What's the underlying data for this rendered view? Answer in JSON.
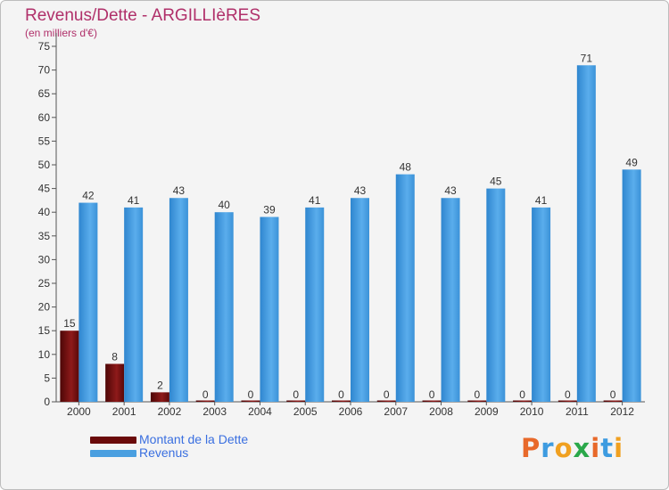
{
  "title": "Revenus/Dette - ARGILLIèRES",
  "subtitle": "(en milliers d'€)",
  "logo_text": "Proxiti",
  "colors": {
    "title": "#b0306a",
    "debt": "#7a0f0f",
    "revenue": "#4a9fe0",
    "legend_text": "#3a6fe0",
    "background": "#f4f4f4"
  },
  "chart_data": {
    "type": "bar",
    "title": "Revenus/Dette - ARGILLIèRES",
    "subtitle": "(en milliers d'€)",
    "categories": [
      "2000",
      "2001",
      "2002",
      "2003",
      "2004",
      "2005",
      "2006",
      "2007",
      "2008",
      "2009",
      "2010",
      "2011",
      "2012"
    ],
    "series": [
      {
        "name": "Montant de la Dette",
        "color": "#7a0f0f",
        "values": [
          15,
          8,
          2,
          0,
          0,
          0,
          0,
          0,
          0,
          0,
          0,
          0,
          0
        ]
      },
      {
        "name": "Revenus",
        "color": "#4a9fe0",
        "values": [
          42,
          41,
          43,
          40,
          39,
          41,
          43,
          48,
          43,
          45,
          41,
          71,
          49
        ]
      }
    ],
    "ylim": [
      0,
      75
    ],
    "yticks": [
      0,
      5,
      10,
      15,
      20,
      25,
      30,
      35,
      40,
      45,
      50,
      55,
      60,
      65,
      70,
      75
    ],
    "xlabel": "",
    "ylabel": "",
    "grid": false,
    "legend_position": "bottom-left"
  }
}
